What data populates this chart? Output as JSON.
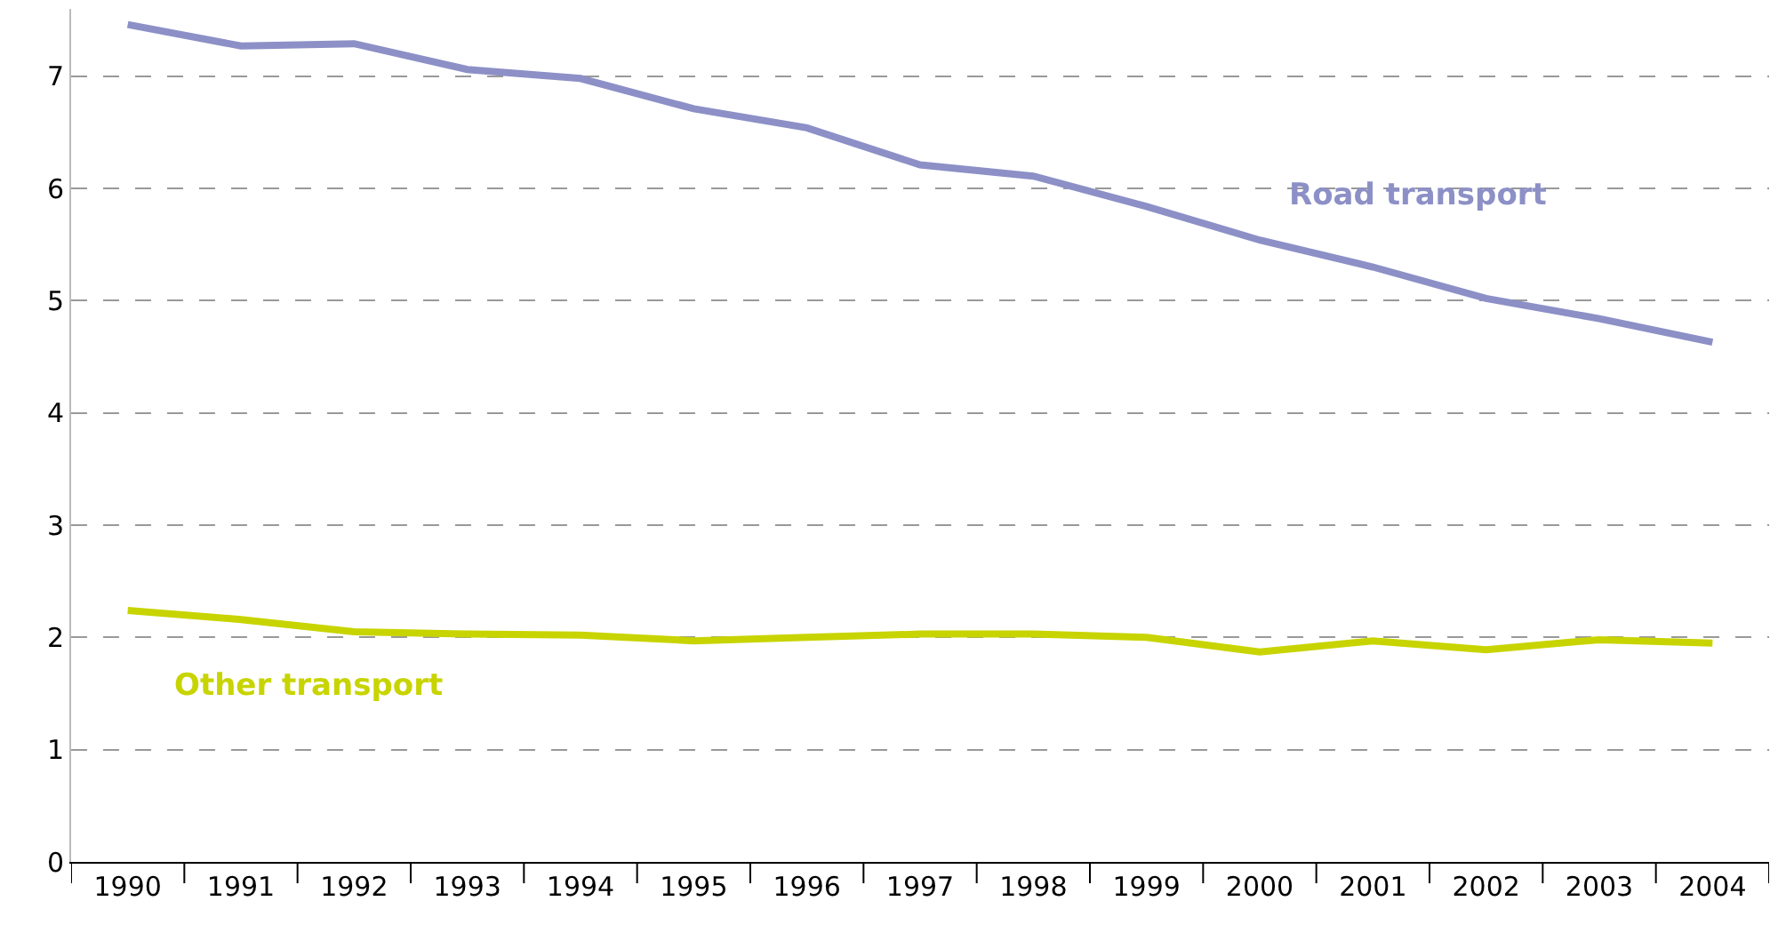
{
  "chart_data": {
    "type": "line",
    "categories": [
      "1990",
      "1991",
      "1992",
      "1993",
      "1994",
      "1995",
      "1996",
      "1997",
      "1998",
      "1999",
      "2000",
      "2001",
      "2002",
      "2003",
      "2004"
    ],
    "series": [
      {
        "name": "Road transport",
        "color": "#8c90c6",
        "values": [
          7.46,
          7.27,
          7.29,
          7.06,
          6.98,
          6.71,
          6.54,
          6.21,
          6.11,
          5.84,
          5.54,
          5.3,
          5.02,
          4.84,
          4.63
        ]
      },
      {
        "name": "Other transport",
        "color": "#c8d400",
        "values": [
          2.24,
          2.16,
          2.05,
          2.03,
          2.02,
          1.97,
          2.0,
          2.03,
          2.03,
          2.0,
          1.87,
          1.97,
          1.89,
          1.98,
          1.95
        ]
      }
    ],
    "ylim": [
      0,
      7.6
    ],
    "yticks": [
      0,
      1,
      2,
      3,
      4,
      5,
      6,
      7
    ],
    "grid": "y",
    "legend": false,
    "marker": "none",
    "line_style": "solid"
  }
}
